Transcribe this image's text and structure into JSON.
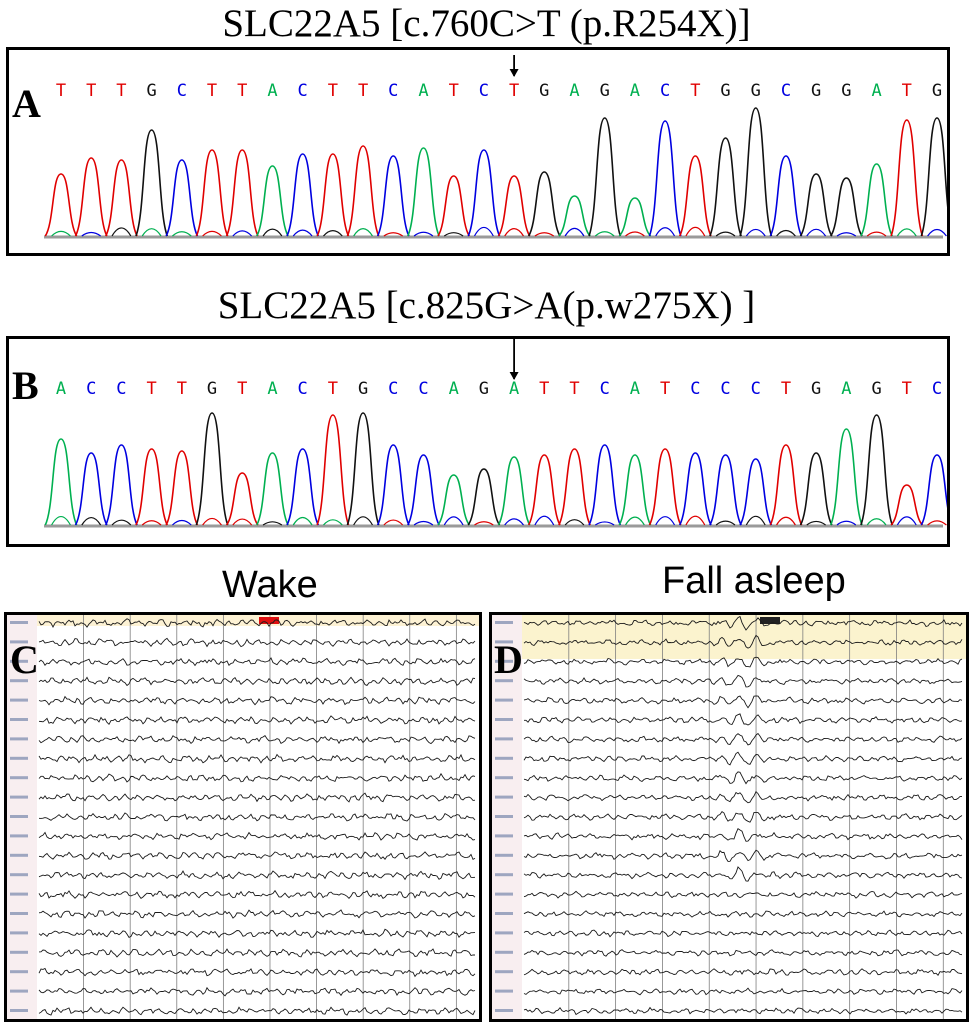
{
  "panel_a": {
    "title": "SLC22A5 [c.760C>T (p.R254X)]",
    "label": "A",
    "sequence": "TTTGCTTACTTCATCTGAGACTGGCGGATG",
    "mutation_index": 15
  },
  "panel_b": {
    "title": "SLC22A5 [c.825G>A(p.w275X) ]",
    "label": "B",
    "sequence": "ACCTTGTACTGCCAGATTCATCCCTGAGTC",
    "mutation_index": 15
  },
  "panel_c": {
    "title": "Wake",
    "label": "C"
  },
  "panel_d": {
    "title": "Fall asleep",
    "label": "D"
  },
  "base_colors": {
    "A": "#00b050",
    "C": "#0000e0",
    "G": "#111111",
    "T": "#e00000"
  }
}
